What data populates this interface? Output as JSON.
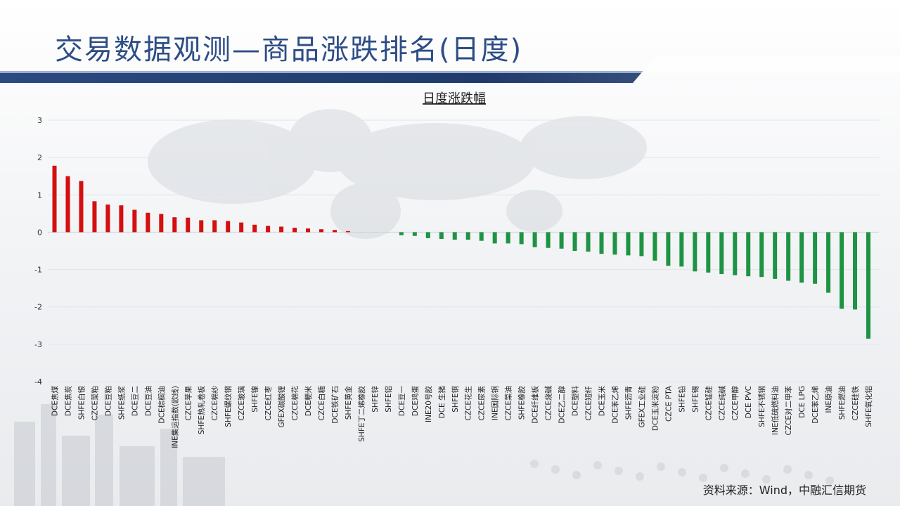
{
  "slide": {
    "title": "交易数据观测—商品涨跌排名(日度)",
    "source": "资料来源：Wind，中融汇信期货"
  },
  "colors": {
    "up": "#d40f0f",
    "down": "#1e9344",
    "title": "#2d4d86",
    "header_bar": "#1f3a6b"
  },
  "chart_data": {
    "type": "bar",
    "title": "日度涨跌幅",
    "xlabel": "",
    "ylabel": "",
    "ylim": [
      -4,
      3
    ],
    "yticks": [
      3,
      2,
      1,
      0,
      -1,
      -2,
      -3,
      -4
    ],
    "grid": true,
    "categories": [
      "DCE焦煤",
      "DCE焦炭",
      "SHFE白银",
      "CZCE菜粕",
      "DCE豆粕",
      "SHFE纸浆",
      "DCE豆二",
      "DCE豆油",
      "DCE棕榈油",
      "INE集运指数(欧线)",
      "CZCE苹果",
      "SHFE热轧卷板",
      "CZCE棉纱",
      "SHFE螺纹钢",
      "CZCE玻璃",
      "SHFE镍",
      "CZCE红枣",
      "GFEX碳酸锂",
      "CZCE棉花",
      "DCE粳米",
      "CZCE白糖",
      "DCE铁矿石",
      "SHFE黄金",
      "SHFE丁二烯橡胶",
      "SHFE锌",
      "SHFE铝",
      "DCE豆一",
      "DCE鸡蛋",
      "INE20号胶",
      "DCE 生猪",
      "SHFE铜",
      "CZCE花生",
      "CZCE尿素",
      "INE国际铜",
      "CZCE菜油",
      "SHFE橡胶",
      "DCE纤维板",
      "CZCE烧碱",
      "DCE乙二醇",
      "DCE塑料",
      "CZCE短纤",
      "DCE玉米",
      "DCE苯乙烯",
      "SHFE沥青",
      "GFEX工业硅",
      "DCE玉米淀粉",
      "CZCE PTA",
      "SHFE铅",
      "SHFE锡",
      "CZCE锰硅",
      "CZCE纯碱",
      "CZCE甲醇",
      "DCE PVC",
      "SHFE不锈钢",
      "INE低硫燃料油",
      "CZCE对二甲苯",
      "DCE LPG",
      "DCE苯乙烯",
      "INE原油",
      "SHFE燃油",
      "CZCE硅铁",
      "SHFE氧化铝"
    ],
    "values": [
      1.78,
      1.5,
      1.37,
      0.83,
      0.74,
      0.72,
      0.6,
      0.52,
      0.49,
      0.4,
      0.39,
      0.32,
      0.32,
      0.3,
      0.26,
      0.2,
      0.17,
      0.15,
      0.12,
      0.1,
      0.08,
      0.06,
      0.03,
      0.0,
      0.0,
      0.0,
      -0.08,
      -0.1,
      -0.16,
      -0.18,
      -0.2,
      -0.2,
      -0.23,
      -0.3,
      -0.3,
      -0.32,
      -0.4,
      -0.42,
      -0.44,
      -0.5,
      -0.52,
      -0.58,
      -0.6,
      -0.62,
      -0.64,
      -0.76,
      -0.9,
      -0.92,
      -1.05,
      -1.08,
      -1.12,
      -1.15,
      -1.18,
      -1.2,
      -1.25,
      -1.3,
      -1.35,
      -1.38,
      -1.62,
      -2.05,
      -2.07,
      -2.85
    ]
  }
}
